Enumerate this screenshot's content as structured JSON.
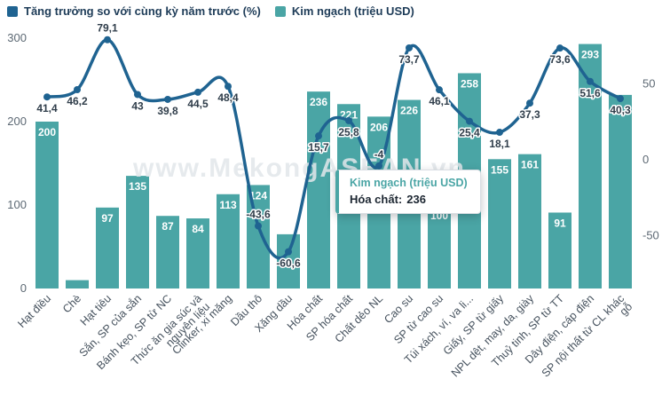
{
  "legend": {
    "items": [
      {
        "label": "Tăng trưởng so với cùng kỳ năm trước (%)",
        "color": "#1f6391"
      },
      {
        "label": "Kim ngạch (triệu USD)",
        "color": "#4aa5a5"
      }
    ]
  },
  "watermark": "www.MekongASEAN.vn",
  "tooltip": {
    "title": "Kim ngạch (triệu USD)",
    "label": "Hóa chất:",
    "value": "236"
  },
  "chart_data": {
    "type": "bar+line",
    "title": "",
    "grid": false,
    "legend_position": "top-left",
    "categories": [
      "Hạt điều",
      "Chè",
      "Hạt tiêu",
      "Sắn, SP của sắn",
      "Bánh kẹo, SP từ NC",
      "Thức ăn gia súc và\nnguyên liệu",
      "Clinker, xi măng",
      "Dầu thô",
      "Xăng dầu",
      "Hóa chất",
      "SP hóa chất",
      "Chất dẻo NL",
      "Cao su",
      "SP từ cao su",
      "Túi xách, ví, va li...",
      "Giấy, SP từ giấy",
      "NPL dệt, may, da, giày",
      "Thuỷ tinh, SP từ TT",
      "Dây điện, cáp điện",
      "SP nội thất từ CL khác\ngỗ"
    ],
    "series": [
      {
        "name": "Kim ngạch (triệu USD)",
        "type": "bar",
        "color": "#4aa5a5",
        "values": [
          200,
          10,
          97,
          135,
          87,
          84,
          113,
          124,
          65,
          236,
          221,
          206,
          226,
          100,
          258,
          155,
          161,
          91,
          293,
          232
        ],
        "labels": [
          "200",
          null,
          "97",
          "135",
          "87",
          "84",
          "113",
          "124",
          null,
          "236",
          "221",
          "206",
          "226",
          "100",
          "258",
          "155",
          "161",
          "91",
          "293",
          null
        ]
      },
      {
        "name": "Tăng trưởng so với cùng kỳ năm trước (%)",
        "type": "line",
        "color": "#1f6391",
        "values": [
          41.4,
          46.2,
          79.1,
          43,
          39.8,
          44.5,
          48.4,
          -43.6,
          -60.6,
          15.7,
          25.8,
          -4,
          73.7,
          46.1,
          25.4,
          18.1,
          37.3,
          73.6,
          51.6,
          40.3
        ],
        "labels": [
          "41,4",
          "46,2",
          "79,1",
          "43",
          "39,8",
          "44,5",
          "48,4",
          "-43,6",
          "-60,6",
          "15,7",
          "25,8",
          "-4",
          "73,7",
          "46,1",
          "25,4",
          "18,1",
          "37,3",
          "73,6",
          "51,6",
          "40,3"
        ],
        "label_side": [
          "below",
          "below",
          "above",
          "below",
          "below",
          "below",
          "below",
          "above",
          "below",
          "below",
          "below",
          "above",
          "below",
          "below",
          "below",
          "below",
          "below",
          "below",
          "below",
          "below"
        ]
      }
    ],
    "left_axis": {
      "min": 0,
      "max": 300,
      "ticks": [
        300,
        200,
        100,
        0
      ]
    },
    "right_axis": {
      "ticks": [
        50,
        0,
        -50
      ]
    }
  }
}
